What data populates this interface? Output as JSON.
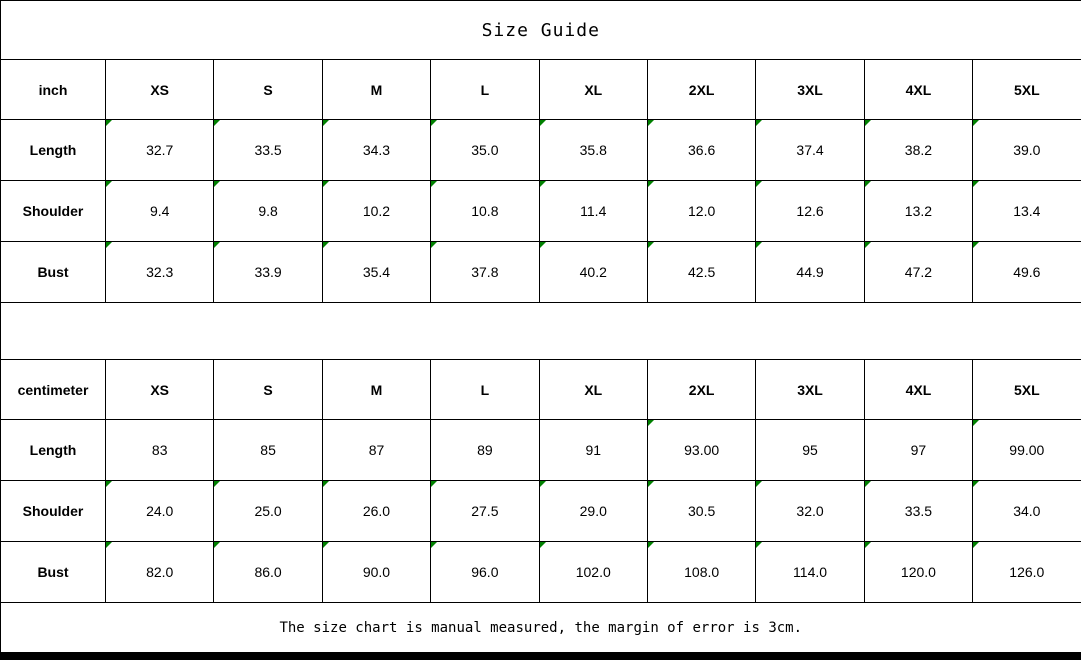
{
  "title": "Size Guide",
  "footer_note": "The size chart is manual measured, the margin of error is 3cm.",
  "colors": {
    "flag_green": "#008000",
    "border": "#000000",
    "text": "#000000",
    "background": "#ffffff"
  },
  "chart_data": [
    {
      "type": "table",
      "title": "Size Guide",
      "unit": "inch",
      "columns": [
        "inch",
        "XS",
        "S",
        "M",
        "L",
        "XL",
        "2XL",
        "3XL",
        "4XL",
        "5XL"
      ],
      "rows": [
        {
          "label": "Length",
          "values": [
            "32.7",
            "33.5",
            "34.3",
            "35.0",
            "35.8",
            "36.6",
            "37.4",
            "38.2",
            "39.0"
          ],
          "flagged": [
            true,
            true,
            true,
            true,
            true,
            true,
            true,
            true,
            true
          ]
        },
        {
          "label": "Shoulder",
          "values": [
            "9.4",
            "9.8",
            "10.2",
            "10.8",
            "11.4",
            "12.0",
            "12.6",
            "13.2",
            "13.4"
          ],
          "flagged": [
            true,
            true,
            true,
            true,
            true,
            true,
            true,
            true,
            true
          ]
        },
        {
          "label": "Bust",
          "values": [
            "32.3",
            "33.9",
            "35.4",
            "37.8",
            "40.2",
            "42.5",
            "44.9",
            "47.2",
            "49.6"
          ],
          "flagged": [
            true,
            true,
            true,
            true,
            true,
            true,
            true,
            true,
            true
          ]
        }
      ]
    },
    {
      "type": "table",
      "title": "Size Guide",
      "unit": "centimeter",
      "columns": [
        "centimeter",
        "XS",
        "S",
        "M",
        "L",
        "XL",
        "2XL",
        "3XL",
        "4XL",
        "5XL"
      ],
      "rows": [
        {
          "label": "Length",
          "values": [
            "83",
            "85",
            "87",
            "89",
            "91",
            "93.00",
            "95",
            "97",
            "99.00"
          ],
          "flagged": [
            false,
            false,
            false,
            false,
            false,
            true,
            false,
            false,
            true
          ]
        },
        {
          "label": "Shoulder",
          "values": [
            "24.0",
            "25.0",
            "26.0",
            "27.5",
            "29.0",
            "30.5",
            "32.0",
            "33.5",
            "34.0"
          ],
          "flagged": [
            true,
            true,
            true,
            true,
            true,
            true,
            true,
            true,
            true
          ]
        },
        {
          "label": "Bust",
          "values": [
            "82.0",
            "86.0",
            "90.0",
            "96.0",
            "102.0",
            "108.0",
            "114.0",
            "120.0",
            "126.0"
          ],
          "flagged": [
            true,
            true,
            true,
            true,
            true,
            true,
            true,
            true,
            true
          ]
        }
      ]
    }
  ]
}
